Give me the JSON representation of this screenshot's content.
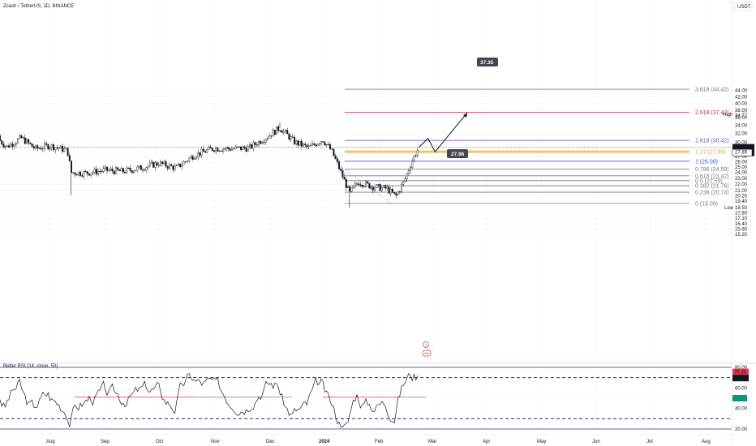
{
  "symbol": "Zcash / TetherUS, 1D, BINANCE",
  "currency": "USDT",
  "colors": {
    "up": "#131722",
    "down": "#131722",
    "fib_red": "#e91e63",
    "fib_purple": "#7e57c2",
    "fib_orange": "#f5a623",
    "fib_blue": "#2962ff",
    "fib_grey": "#787b86",
    "rsi_line": "#131722",
    "rsi_red": "#f23645",
    "rsi_green": "#4caf50",
    "rsi_bounds": "#1e3a8a",
    "highlight_green": "#089981",
    "tag_dark": "#434651"
  },
  "price_axis": {
    "ticks": [
      "44.00",
      "42.00",
      "40.00",
      "38.00",
      "36.00",
      "34.00",
      "32.00",
      "30.00",
      "28.92",
      "27.89",
      "27.00",
      "26.00",
      "25.00",
      "24.00",
      "23.00",
      "22.00",
      "21.00",
      "20.20",
      "19.40",
      "18.50",
      "17.80",
      "17.10",
      "16.40",
      "15.80",
      "15.20"
    ],
    "log_ticks": [
      44,
      42,
      40,
      38,
      36,
      34,
      32,
      30,
      27,
      26,
      25,
      24,
      23,
      22,
      21,
      20.2,
      19.4,
      17.8,
      17.1,
      16.4,
      15.8,
      15.2
    ],
    "high_label": "High",
    "high_value": "34.77",
    "low_label": "Low",
    "low_value": "18.50",
    "last_price": "28.92",
    "countdown": "19:24:00",
    "prev_close": "27.89"
  },
  "time_axis": [
    "Aug",
    "Sep",
    "Oct",
    "Nov",
    "Dec",
    "2024",
    "Feb",
    "Mar",
    "Apr",
    "May",
    "Jun",
    "Jul",
    "Aug"
  ],
  "fib_levels": [
    {
      "ratio": "3.618",
      "price": 44.42,
      "label": "3.618 (44.42)"
    },
    {
      "ratio": "2.618",
      "price": 37.42,
      "label": "2.618 (37.42)"
    },
    {
      "ratio": "1.618",
      "price": 30.42,
      "label": "1.618 (30.42)"
    },
    {
      "ratio": "1.27",
      "price": 27.98,
      "label": "1.27 (27.98)"
    },
    {
      "ratio": "1",
      "price": 26.09,
      "label": "1 (26.09)"
    },
    {
      "ratio": "0.786",
      "price": 24.59,
      "label": "0.786 (24.59)"
    },
    {
      "ratio": "0.618",
      "price": 23.42,
      "label": "0.618 (23.42)"
    },
    {
      "ratio": "0.5",
      "price": 22.59,
      "label": "0.5 (22.59)"
    },
    {
      "ratio": "0.382",
      "price": 21.76,
      "label": "0.382 (21.76)"
    },
    {
      "ratio": "0.236",
      "price": 20.74,
      "label": "0.236 (20.74)"
    },
    {
      "ratio": "0",
      "price": 19.09,
      "label": "0 (19.09)"
    }
  ],
  "projection": {
    "target_label": "37.35",
    "pullback_label": "27.96"
  },
  "rsi": {
    "title": "Better RSI (14, close, 50)",
    "ticks": [
      "80.00",
      "60.00",
      "40.00",
      "20.00"
    ],
    "value_red": "76.36",
    "value_dark": "70.35"
  },
  "chart_data": {
    "type": "candlestick",
    "title": "Zcash / TetherUS, 1D, BINANCE",
    "xlabel": "",
    "ylabel": "",
    "y_scale": "log",
    "ylim": [
      15.0,
      46.0
    ],
    "x_range": [
      "2023-07-05",
      "2024-08-10"
    ],
    "close_path": [
      {
        "date": "2023-07-05",
        "price": 31.5
      },
      {
        "date": "2023-07-12",
        "price": 29.0
      },
      {
        "date": "2023-07-20",
        "price": 31.0
      },
      {
        "date": "2023-07-28",
        "price": 28.6
      },
      {
        "date": "2023-08-05",
        "price": 29.3
      },
      {
        "date": "2023-08-15",
        "price": 28.2
      },
      {
        "date": "2023-08-17",
        "price": 24.0
      },
      {
        "date": "2023-08-25",
        "price": 23.9
      },
      {
        "date": "2023-09-05",
        "price": 24.4
      },
      {
        "date": "2023-09-15",
        "price": 24.2
      },
      {
        "date": "2023-09-25",
        "price": 24.8
      },
      {
        "date": "2023-10-05",
        "price": 25.7
      },
      {
        "date": "2023-10-15",
        "price": 24.8
      },
      {
        "date": "2023-10-25",
        "price": 27.3
      },
      {
        "date": "2023-11-05",
        "price": 28.7
      },
      {
        "date": "2023-11-15",
        "price": 28.6
      },
      {
        "date": "2023-11-25",
        "price": 28.8
      },
      {
        "date": "2023-12-05",
        "price": 31.3
      },
      {
        "date": "2023-12-12",
        "price": 33.4
      },
      {
        "date": "2023-12-20",
        "price": 30.1
      },
      {
        "date": "2023-12-28",
        "price": 28.8
      },
      {
        "date": "2024-01-05",
        "price": 30.6
      },
      {
        "date": "2024-01-10",
        "price": 28.1
      },
      {
        "date": "2024-01-15",
        "price": 24.2
      },
      {
        "date": "2024-01-20",
        "price": 20.5
      },
      {
        "date": "2024-01-25",
        "price": 22.4
      },
      {
        "date": "2024-02-02",
        "price": 21.6
      },
      {
        "date": "2024-02-10",
        "price": 21.3
      },
      {
        "date": "2024-02-15",
        "price": 20.1
      },
      {
        "date": "2024-02-20",
        "price": 22.7
      },
      {
        "date": "2024-02-24",
        "price": 26.1
      },
      {
        "date": "2024-02-28",
        "price": 28.92
      }
    ],
    "annotations": {
      "high": 34.77,
      "low": 18.5,
      "last": 28.92,
      "projection_path": [
        {
          "date": "2024-02-28",
          "price": 28.92
        },
        {
          "date": "2024-03-04",
          "price": 30.9
        },
        {
          "date": "2024-03-08",
          "price": 27.96
        },
        {
          "date": "2024-03-26",
          "price": 37.35
        }
      ]
    }
  }
}
